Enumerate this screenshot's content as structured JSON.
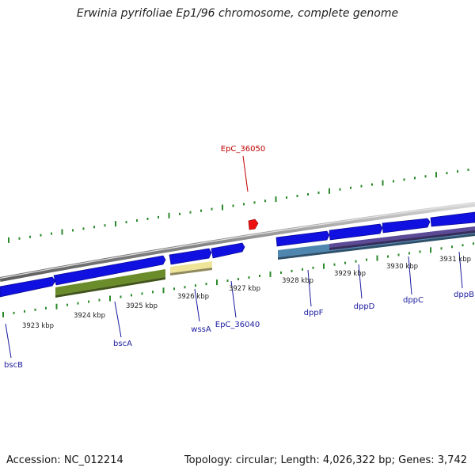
{
  "title": "Erwinia pyrifoliae Ep1/96 chromosome, complete genome",
  "footer": {
    "accession": "Accession: NC_012214",
    "topology": "Topology: circular; Length: 4,026,322 bp; Genes: 3,742"
  },
  "colors": {
    "forward_gene": "#1010e0",
    "rna_feature": "#6b8c2a",
    "pseudo_feature": "#eee59a",
    "domain_feature": "#4f86b0",
    "variation_feature": "#5c4a96",
    "highlight_gene": "#ee1111",
    "tick": "#2a8a2a",
    "backbone": "#8c8c8c",
    "label": "#1a1aa0",
    "highlight_label": "#c00000"
  },
  "scale_labels": [
    "3923 kbp",
    "3924 kbp",
    "3925 kbp",
    "3926 kbp",
    "3927 kbp",
    "3928 kbp",
    "3929 kbp",
    "3930 kbp",
    "3931 kbp"
  ],
  "gene_labels": [
    "bscB",
    "bscA",
    "wssA",
    "EpC_36040",
    "dppF",
    "dppD",
    "dppC",
    "dppB"
  ],
  "highlight_label": "EpC_36050"
}
